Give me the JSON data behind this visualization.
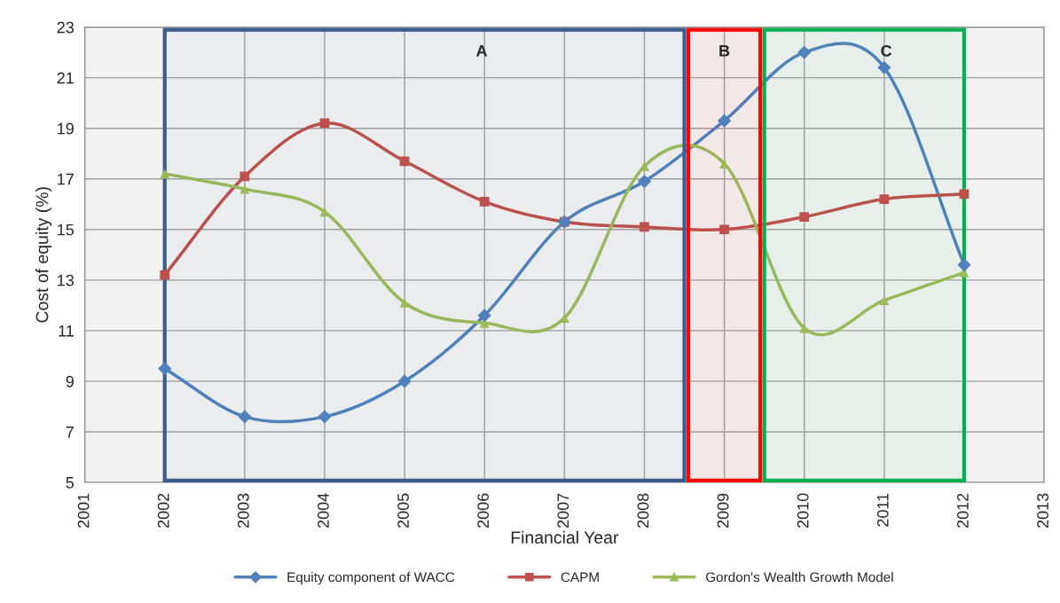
{
  "chart_data": {
    "type": "line",
    "xlabel": "Financial Year",
    "ylabel": "Cost of equity (%)",
    "x": [
      2002,
      2003,
      2004,
      2005,
      2006,
      2007,
      2008,
      2009,
      2010,
      2011,
      2012
    ],
    "series": [
      {
        "name": "Equity component of WACC",
        "color": "#4f81bd",
        "marker": "diamond",
        "values": [
          9.5,
          7.6,
          7.6,
          9.0,
          11.6,
          15.3,
          16.9,
          19.3,
          22.0,
          21.4,
          13.6
        ]
      },
      {
        "name": "CAPM",
        "color": "#c0504d",
        "marker": "square",
        "values": [
          13.2,
          17.1,
          19.2,
          17.7,
          16.1,
          15.3,
          15.1,
          15.0,
          15.5,
          16.2,
          16.4
        ]
      },
      {
        "name": "Gordon's Wealth Growth Model",
        "color": "#9bbb59",
        "marker": "triangle",
        "values": [
          17.2,
          16.6,
          15.7,
          12.1,
          11.3,
          11.5,
          17.5,
          17.6,
          11.1,
          12.2,
          13.3
        ]
      }
    ],
    "bands": [
      {
        "axis": "x",
        "from": 2002,
        "to": 2008.5,
        "label": "A",
        "color": "#3b5b8c"
      },
      {
        "axis": "x",
        "from": 2008.55,
        "to": 2009.45,
        "label": "B",
        "color": "#ff0000"
      },
      {
        "axis": "x",
        "from": 2009.5,
        "to": 2012,
        "label": "C",
        "color": "#00b050"
      }
    ],
    "xlim": [
      2001,
      2013
    ],
    "xticks": [
      2001,
      2002,
      2003,
      2004,
      2005,
      2006,
      2007,
      2008,
      2009,
      2010,
      2011,
      2012,
      2013
    ],
    "ylim": [
      5,
      23
    ],
    "yticks": [
      5,
      7,
      9,
      11,
      13,
      15,
      17,
      19,
      21,
      23
    ],
    "grid": true,
    "legend": "bottom",
    "line_style": "solid"
  }
}
